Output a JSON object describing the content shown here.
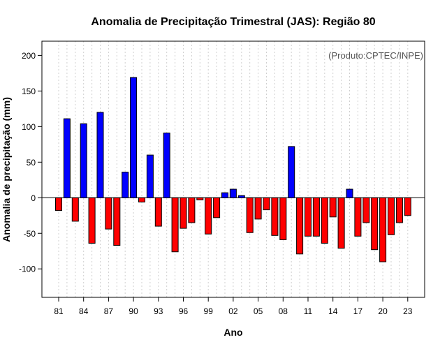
{
  "chart_data": {
    "type": "bar",
    "title": "Anomalia de Precipitação Trimestral (JAS): Região 80",
    "credit": "(Produto:CPTEC/INPE)",
    "xlabel": "Ano",
    "ylabel": "Anomalia de precipitação (mm)",
    "ylim": [
      -140,
      220
    ],
    "y_ticks": [
      -100,
      -50,
      0,
      50,
      100,
      150,
      200
    ],
    "x_tick_labels": [
      "81",
      "84",
      "87",
      "90",
      "93",
      "96",
      "99",
      "02",
      "05",
      "08",
      "11",
      "14",
      "17",
      "20",
      "23"
    ],
    "positive_color": "#0000ff",
    "negative_color": "#ff0000",
    "categories": [
      "1981",
      "1982",
      "1983",
      "1984",
      "1985",
      "1986",
      "1987",
      "1988",
      "1989",
      "1990",
      "1991",
      "1992",
      "1993",
      "1994",
      "1995",
      "1996",
      "1997",
      "1998",
      "1999",
      "2000",
      "2001",
      "2002",
      "2003",
      "2004",
      "2005",
      "2006",
      "2007",
      "2008",
      "2009",
      "2010",
      "2011",
      "2012",
      "2013",
      "2014",
      "2015",
      "2016",
      "2017",
      "2018",
      "2019",
      "2020",
      "2021",
      "2022",
      "2023"
    ],
    "values": [
      -18,
      111,
      -33,
      104,
      -64,
      120,
      -44,
      -67,
      36,
      169,
      -6,
      60,
      -40,
      91,
      -76,
      -43,
      -35,
      -3,
      -51,
      -28,
      7,
      12,
      3,
      -49,
      -30,
      -17,
      -53,
      -59,
      72,
      -79,
      -54,
      -54,
      -64,
      -27,
      -71,
      12,
      -54,
      -35,
      -73,
      -90,
      -52,
      -35,
      -25
    ]
  }
}
